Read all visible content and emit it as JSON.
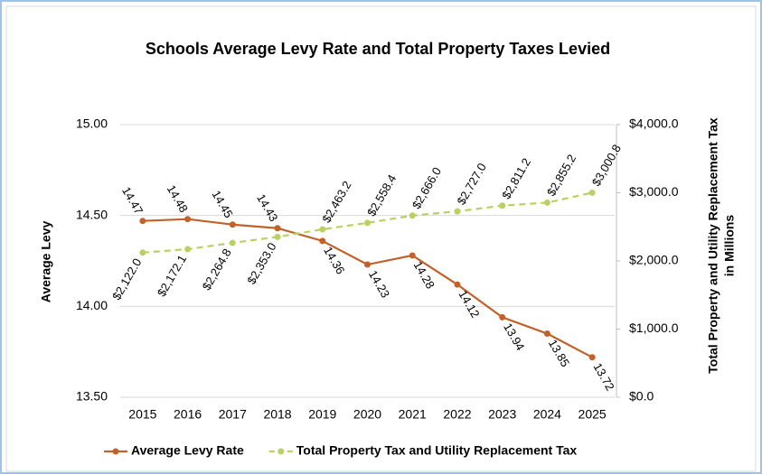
{
  "chart_data": {
    "type": "line",
    "title": "Schools Average Levy Rate and Total Property Taxes Levied",
    "ylabel": "Average Levy",
    "y2label": [
      "Total Property and Utility Replacement Tax",
      "in Millions"
    ],
    "categories": [
      "2015",
      "2016",
      "2017",
      "2018",
      "2019",
      "2020",
      "2021",
      "2022",
      "2023",
      "2024",
      "2025"
    ],
    "series": [
      {
        "name": "Average Levy Rate",
        "color": "#c0622a",
        "dashed": false,
        "values": [
          14.47,
          14.48,
          14.45,
          14.43,
          14.36,
          14.23,
          14.28,
          14.12,
          13.94,
          13.85,
          13.72
        ],
        "value_labels": [
          "14.47",
          "14.48",
          "14.45",
          "14.43",
          "14.36",
          "14.23",
          "14.28",
          "14.12",
          "13.94",
          "13.85",
          "13.72"
        ]
      },
      {
        "name": "Total Property Tax and Utility Replacement Tax",
        "color": "#b8d161",
        "dashed": true,
        "axis": "y2",
        "values": [
          2122.0,
          2172.1,
          2264.8,
          2353.0,
          2463.2,
          2558.4,
          2666.0,
          2727.0,
          2811.2,
          2855.2,
          3000.8
        ],
        "value_labels": [
          "$2,122.0",
          "$2,172.1",
          "$2,264.8",
          "$2,353.0",
          "$2,463.2",
          "$2,558.4",
          "$2,666.0",
          "$2,727.0",
          "$2,811.2",
          "$2,855.2",
          "$3,000.8"
        ]
      }
    ],
    "ylim": [
      13.5,
      15.0
    ],
    "yticks": [
      {
        "value": 13.5,
        "label": "13.50"
      },
      {
        "value": 14.0,
        "label": "14.00"
      },
      {
        "value": 14.5,
        "label": "14.50"
      },
      {
        "value": 15.0,
        "label": "15.00"
      }
    ],
    "y2lim": [
      0,
      4000
    ],
    "y2ticks": [
      {
        "value": 0,
        "label": "$0.0"
      },
      {
        "value": 1000,
        "label": "$1,000.0"
      },
      {
        "value": 2000,
        "label": "$2,000.0"
      },
      {
        "value": 3000,
        "label": "$3,000.0"
      },
      {
        "value": 4000,
        "label": "$4,000.0"
      }
    ],
    "grid": true,
    "legend": "bottom"
  }
}
